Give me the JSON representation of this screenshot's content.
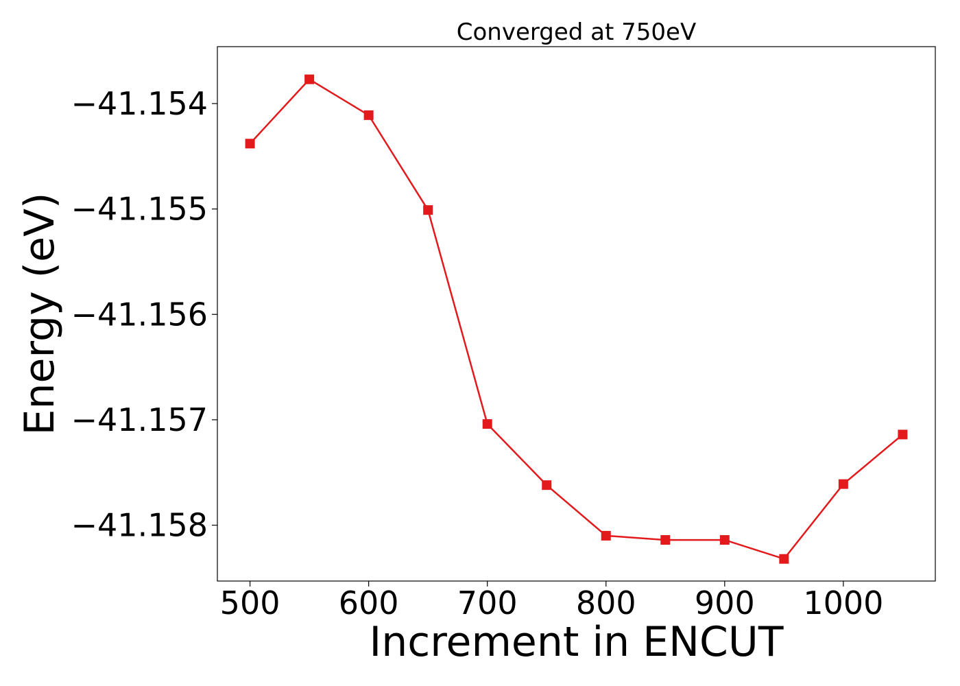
{
  "chart_data": {
    "type": "line",
    "title": "Converged at 750eV",
    "xlabel": "Increment in ENCUT",
    "ylabel": "Energy (eV)",
    "xlim": [
      472.5,
      1077.5
    ],
    "ylim": [
      -41.15853,
      -41.15346
    ],
    "xticks": [
      500,
      600,
      700,
      800,
      900,
      1000
    ],
    "xtick_labels": [
      "500",
      "600",
      "700",
      "800",
      "900",
      "1000"
    ],
    "yticks": [
      -41.154,
      -41.155,
      -41.156,
      -41.157,
      -41.158
    ],
    "ytick_labels": [
      "−41.154",
      "−41.155",
      "−41.156",
      "−41.157",
      "−41.158"
    ],
    "grid": false,
    "series": [
      {
        "color": "#e31a1c",
        "marker": "square",
        "x": [
          500,
          550,
          600,
          650,
          700,
          750,
          800,
          850,
          900,
          950,
          1000,
          1050
        ],
        "y": [
          -41.15438,
          -41.15377,
          -41.15411,
          -41.15501,
          -41.15704,
          -41.15762,
          -41.1581,
          -41.15814,
          -41.15814,
          -41.15832,
          -41.15761,
          -41.15714
        ]
      }
    ]
  }
}
